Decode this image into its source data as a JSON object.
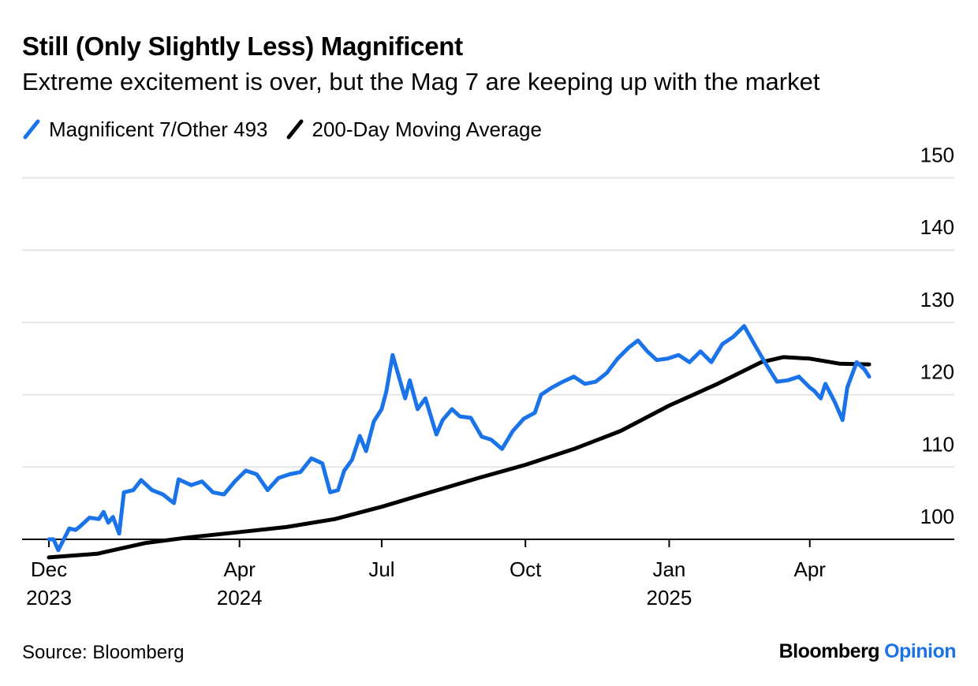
{
  "header": {
    "title": "Still (Only Slightly Less) Magnificent",
    "subtitle": "Extreme excitement is over, but the Mag 7 are keeping up with the market"
  },
  "footer": {
    "source": "Source: Bloomberg",
    "brand_main": "Bloomberg",
    "brand_sub": "Opinion"
  },
  "chart_data": {
    "type": "line",
    "title": "Still (Only Slightly Less) Magnificent",
    "subtitle": "Extreme excitement is over, but the Mag 7 are keeping up with the market",
    "xlabel": "",
    "ylabel": "",
    "ylim": [
      97.5,
      150
    ],
    "yticks": [
      100,
      110,
      120,
      130,
      140,
      150
    ],
    "grid": true,
    "legend_position": "top-left",
    "x_ticks": [
      {
        "date": "2023-12-01",
        "label": "Dec",
        "year": "2023"
      },
      {
        "date": "2024-04-01",
        "label": "Apr",
        "year": "2024"
      },
      {
        "date": "2024-07-01",
        "label": "Jul",
        "year": ""
      },
      {
        "date": "2024-10-01",
        "label": "Oct",
        "year": ""
      },
      {
        "date": "2025-01-01",
        "label": "Jan",
        "year": "2025"
      },
      {
        "date": "2025-04-01",
        "label": "Apr",
        "year": ""
      }
    ],
    "series": [
      {
        "name": "Magnificent 7/Other 493",
        "color": "#1a73e8",
        "points": [
          [
            "2023-12-01",
            100
          ],
          [
            "2023-12-04",
            100
          ],
          [
            "2023-12-07",
            98.5
          ],
          [
            "2023-12-11",
            100.2
          ],
          [
            "2023-12-14",
            101.5
          ],
          [
            "2023-12-18",
            101.3
          ],
          [
            "2023-12-21",
            101.8
          ],
          [
            "2023-12-27",
            103
          ],
          [
            "2024-01-02",
            102.8
          ],
          [
            "2024-01-05",
            103.8
          ],
          [
            "2024-01-08",
            102.3
          ],
          [
            "2024-01-11",
            103.1
          ],
          [
            "2024-01-15",
            100.8
          ],
          [
            "2024-01-18",
            106.5
          ],
          [
            "2024-01-24",
            106.8
          ],
          [
            "2024-01-29",
            108.2
          ],
          [
            "2024-02-05",
            106.8
          ],
          [
            "2024-02-12",
            106.2
          ],
          [
            "2024-02-19",
            105
          ],
          [
            "2024-02-22",
            108.3
          ],
          [
            "2024-03-01",
            107.5
          ],
          [
            "2024-03-08",
            108
          ],
          [
            "2024-03-15",
            106.5
          ],
          [
            "2024-03-22",
            106.2
          ],
          [
            "2024-03-29",
            108
          ],
          [
            "2024-04-05",
            109.5
          ],
          [
            "2024-04-12",
            109
          ],
          [
            "2024-04-19",
            106.8
          ],
          [
            "2024-04-26",
            108.5
          ],
          [
            "2024-05-03",
            109
          ],
          [
            "2024-05-10",
            109.3
          ],
          [
            "2024-05-17",
            111.2
          ],
          [
            "2024-05-24",
            110.5
          ],
          [
            "2024-05-29",
            106.5
          ],
          [
            "2024-06-03",
            106.8
          ],
          [
            "2024-06-07",
            109.5
          ],
          [
            "2024-06-12",
            111
          ],
          [
            "2024-06-17",
            114.3
          ],
          [
            "2024-06-21",
            112.2
          ],
          [
            "2024-06-26",
            116.3
          ],
          [
            "2024-07-01",
            118
          ],
          [
            "2024-07-04",
            120.5
          ],
          [
            "2024-07-08",
            125.5
          ],
          [
            "2024-07-10",
            124
          ],
          [
            "2024-07-12",
            122.5
          ],
          [
            "2024-07-16",
            119.5
          ],
          [
            "2024-07-19",
            122
          ],
          [
            "2024-07-24",
            118
          ],
          [
            "2024-07-29",
            119.5
          ],
          [
            "2024-08-05",
            114.5
          ],
          [
            "2024-08-09",
            116.5
          ],
          [
            "2024-08-15",
            118
          ],
          [
            "2024-08-20",
            117
          ],
          [
            "2024-08-27",
            116.8
          ],
          [
            "2024-09-03",
            114.2
          ],
          [
            "2024-09-09",
            113.8
          ],
          [
            "2024-09-16",
            112.5
          ],
          [
            "2024-09-23",
            115
          ],
          [
            "2024-09-30",
            116.7
          ],
          [
            "2024-10-07",
            117.5
          ],
          [
            "2024-10-11",
            120
          ],
          [
            "2024-10-18",
            121
          ],
          [
            "2024-10-25",
            121.8
          ],
          [
            "2024-11-01",
            122.5
          ],
          [
            "2024-11-08",
            121.5
          ],
          [
            "2024-11-15",
            121.8
          ],
          [
            "2024-11-22",
            123
          ],
          [
            "2024-11-29",
            125
          ],
          [
            "2024-12-06",
            126.5
          ],
          [
            "2024-12-12",
            127.5
          ],
          [
            "2024-12-18",
            126
          ],
          [
            "2024-12-24",
            124.8
          ],
          [
            "2024-12-31",
            125
          ],
          [
            "2025-01-07",
            125.5
          ],
          [
            "2025-01-14",
            124.5
          ],
          [
            "2025-01-21",
            126
          ],
          [
            "2025-01-28",
            124.5
          ],
          [
            "2025-02-04",
            127
          ],
          [
            "2025-02-11",
            128
          ],
          [
            "2025-02-18",
            129.5
          ],
          [
            "2025-02-25",
            126.8
          ],
          [
            "2025-03-04",
            124.2
          ],
          [
            "2025-03-11",
            121.8
          ],
          [
            "2025-03-18",
            122
          ],
          [
            "2025-03-25",
            122.5
          ],
          [
            "2025-04-01",
            121
          ],
          [
            "2025-04-04",
            120.5
          ],
          [
            "2025-04-08",
            119.5
          ],
          [
            "2025-04-11",
            121.5
          ],
          [
            "2025-04-17",
            119
          ],
          [
            "2025-04-22",
            116.5
          ],
          [
            "2025-04-25",
            121
          ],
          [
            "2025-05-01",
            124.5
          ],
          [
            "2025-05-06",
            123.5
          ],
          [
            "2025-05-09",
            122.5
          ]
        ]
      },
      {
        "name": "200-Day Moving Average",
        "color": "#000000",
        "points": [
          [
            "2023-12-01",
            97.5
          ],
          [
            "2024-01-01",
            98
          ],
          [
            "2024-02-01",
            99.5
          ],
          [
            "2024-03-01",
            100.3
          ],
          [
            "2024-04-01",
            101
          ],
          [
            "2024-05-01",
            101.7
          ],
          [
            "2024-06-01",
            102.8
          ],
          [
            "2024-07-01",
            104.5
          ],
          [
            "2024-08-01",
            106.5
          ],
          [
            "2024-09-01",
            108.5
          ],
          [
            "2024-10-01",
            110.3
          ],
          [
            "2024-11-01",
            112.5
          ],
          [
            "2024-12-01",
            115
          ],
          [
            "2025-01-01",
            118.5
          ],
          [
            "2025-02-01",
            121.5
          ],
          [
            "2025-03-01",
            124.5
          ],
          [
            "2025-03-15",
            125.2
          ],
          [
            "2025-04-01",
            125
          ],
          [
            "2025-04-20",
            124.3
          ],
          [
            "2025-05-09",
            124.2
          ]
        ]
      }
    ]
  }
}
